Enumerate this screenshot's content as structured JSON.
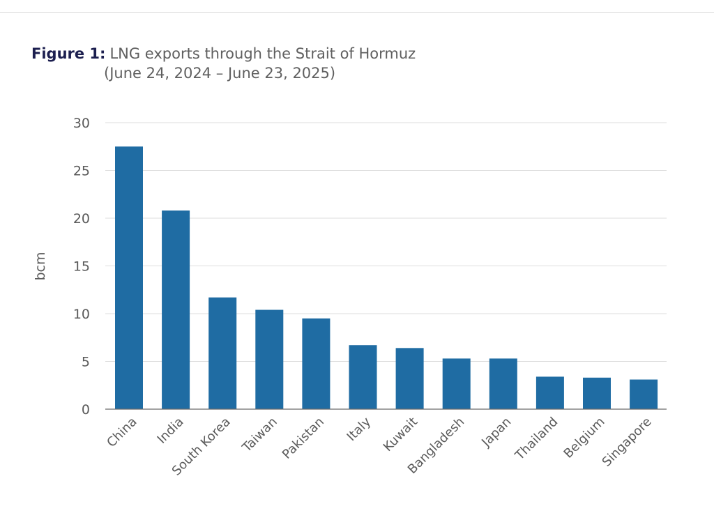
{
  "figure": {
    "label": "Figure 1:",
    "title_line1": "LNG exports through the Strait of Hormuz",
    "title_line2": "(June 24, 2024 – June 23, 2025)"
  },
  "colors": {
    "bar": "#1f6ca3",
    "grid": "#dcdcdc",
    "axis": "#6a6a6a",
    "label_text": "#5a5a5a",
    "title_label": "#1c1f4f"
  },
  "chart_data": {
    "type": "bar",
    "title": "LNG exports through the Strait of Hormuz",
    "subtitle": "(June 24, 2024 – June 23, 2025)",
    "xlabel": "",
    "ylabel": "bcm",
    "categories": [
      "China",
      "India",
      "South Korea",
      "Taiwan",
      "Pakistan",
      "Italy",
      "Kuwait",
      "Bangladesh",
      "Japan",
      "Thailand",
      "Belgium",
      "Singapore"
    ],
    "values": [
      27.5,
      20.8,
      11.7,
      10.4,
      9.5,
      6.7,
      6.4,
      5.3,
      5.3,
      3.4,
      3.3,
      3.1
    ],
    "ylim": [
      0,
      30
    ],
    "yticks": [
      0,
      5,
      10,
      15,
      20,
      25,
      30
    ],
    "grid": true,
    "legend": "none"
  }
}
